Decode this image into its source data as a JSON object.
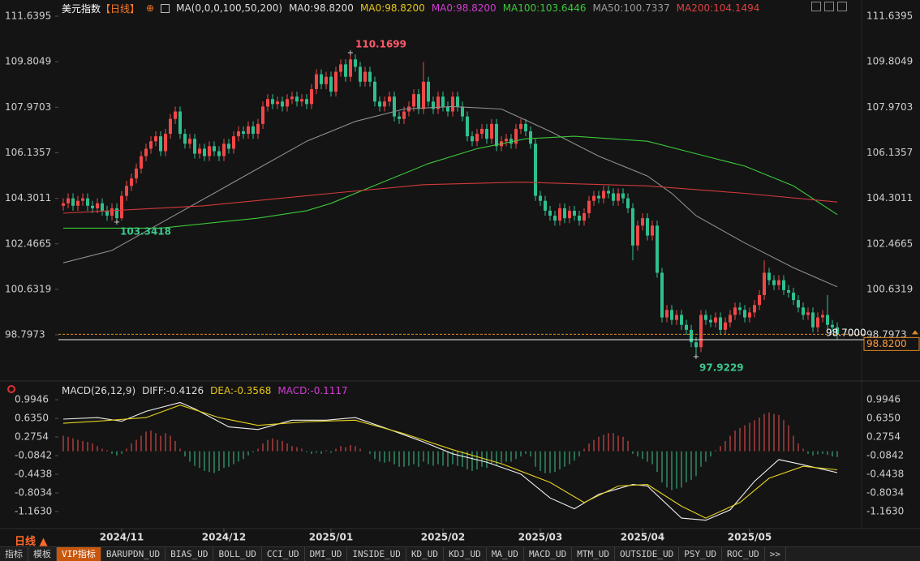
{
  "header": {
    "name": "美元指数",
    "period": "【日线】",
    "indicators": [
      {
        "text": "MA(0,0,0,100,50,200)",
        "color": "#dddddd"
      },
      {
        "text": "MA0:98.8200",
        "color": "#dddddd"
      },
      {
        "text": "MA0:98.8200",
        "color": "#e6c619"
      },
      {
        "text": "MA0:98.8200",
        "color": "#d23cd2"
      },
      {
        "text": "MA100:103.6446",
        "color": "#3cc83c"
      },
      {
        "text": "MA50:100.7337",
        "color": "#9a9a9a"
      },
      {
        "text": "MA200:104.1494",
        "color": "#e04040"
      }
    ]
  },
  "macd_header": [
    {
      "text": "MACD(26,12,9)",
      "color": "#dddddd"
    },
    {
      "text": "DIFF:-0.4126",
      "color": "#dddddd"
    },
    {
      "text": "DEA:-0.3568",
      "color": "#e6c619"
    },
    {
      "text": "MACD:-0.1117",
      "color": "#d23cd2"
    }
  ],
  "period_selector": "日线",
  "toolbar": [
    "指标",
    "模板",
    "VIP指标",
    "BARUPDN_UD",
    "BIAS_UD",
    "BOLL_UD",
    "CCI_UD",
    "DMI_UD",
    "INSIDE_UD",
    "KD_UD",
    "KDJ_UD",
    "MA_UD",
    "MACD_UD",
    "MTM_UD",
    "OUTSIDE_UD",
    "PSY_UD",
    "ROC_UD",
    ">>"
  ],
  "toolbar_active": 2,
  "chart_data": [
    {
      "type": "candlestick",
      "up_color": "#f04848",
      "down_color": "#2fbf8f",
      "xlim": [
        -1,
        165
      ],
      "ylim": [
        97.1,
        112.13
      ],
      "xticks": [
        {
          "value": 12,
          "label": "2024/11"
        },
        {
          "value": 33,
          "label": "2024/12"
        },
        {
          "value": 55,
          "label": "2025/01"
        },
        {
          "value": 78,
          "label": "2025/02"
        },
        {
          "value": 98,
          "label": "2025/03"
        },
        {
          "value": 119,
          "label": "2025/04"
        },
        {
          "value": 141,
          "label": "2025/05"
        }
      ],
      "yticks": [
        111.6395,
        109.8049,
        107.9703,
        106.1357,
        104.3011,
        102.4665,
        100.6319,
        98.7973
      ],
      "grid": false,
      "open": [
        104.0,
        104.1,
        104.3,
        104.0,
        104.2,
        104.3,
        104.0,
        103.9,
        104.1,
        103.8,
        103.6,
        103.9,
        103.5,
        104.4,
        104.8,
        105.1,
        105.5,
        106.0,
        106.3,
        106.6,
        106.8,
        106.2,
        106.9,
        107.5,
        107.8,
        106.9,
        106.5,
        106.7,
        106.1,
        106.3,
        106.0,
        106.4,
        106.2,
        106.0,
        106.5,
        106.3,
        106.8,
        107.0,
        106.9,
        107.2,
        106.9,
        107.3,
        108.0,
        108.3,
        108.1,
        108.2,
        108.0,
        108.3,
        108.4,
        108.2,
        108.3,
        108.1,
        108.7,
        109.3,
        108.9,
        109.2,
        108.6,
        109.4,
        109.7,
        109.2,
        109.9,
        109.6,
        109.0,
        109.4,
        109.0,
        108.2,
        108.0,
        108.2,
        108.4,
        107.6,
        107.5,
        107.8,
        108.0,
        108.5,
        107.9,
        109.0,
        108.2,
        107.9,
        108.4,
        108.0,
        107.8,
        108.4,
        108.0,
        107.6,
        106.8,
        106.6,
        106.9,
        107.1,
        106.7,
        107.3,
        106.4,
        106.6,
        106.7,
        106.5,
        107.1,
        107.3,
        107.0,
        106.5,
        104.4,
        104.2,
        103.8,
        103.6,
        103.4,
        103.9,
        103.5,
        103.8,
        103.6,
        103.4,
        103.7,
        104.2,
        104.4,
        104.3,
        104.6,
        104.5,
        104.2,
        104.5,
        104.3,
        103.9,
        102.4,
        103.2,
        103.5,
        102.8,
        103.2,
        101.3,
        99.5,
        99.8,
        99.4,
        99.6,
        99.2,
        99.0,
        98.5,
        98.3,
        99.6,
        99.4,
        99.3,
        99.5,
        99.0,
        99.3,
        99.6,
        99.9,
        99.8,
        99.5,
        99.7,
        100.0,
        100.4,
        101.3,
        101.0,
        100.8,
        101.0,
        100.6,
        100.5,
        100.2,
        99.9,
        99.6,
        99.7,
        99.1,
        99.5,
        99.6,
        99.2,
        99.1
      ],
      "high": [
        104.3,
        104.5,
        104.5,
        104.4,
        104.5,
        104.5,
        104.2,
        104.3,
        104.3,
        104.0,
        104.1,
        104.1,
        104.6,
        105.0,
        105.3,
        105.7,
        106.2,
        106.5,
        106.8,
        107.0,
        107.0,
        107.1,
        107.7,
        108.0,
        108.0,
        107.1,
        106.9,
        106.9,
        106.5,
        106.5,
        106.6,
        106.6,
        106.4,
        106.7,
        106.7,
        107.0,
        107.2,
        107.2,
        107.4,
        107.4,
        107.5,
        108.2,
        108.5,
        108.5,
        108.4,
        108.4,
        108.5,
        108.6,
        108.6,
        108.5,
        108.5,
        108.9,
        109.5,
        109.5,
        109.4,
        109.4,
        109.6,
        109.9,
        109.9,
        110.1699,
        110.1,
        109.8,
        109.6,
        109.6,
        109.2,
        108.4,
        108.4,
        108.6,
        108.6,
        107.8,
        108.0,
        108.2,
        108.7,
        108.7,
        109.8,
        109.2,
        108.4,
        108.6,
        108.6,
        108.2,
        108.6,
        108.6,
        108.2,
        107.8,
        107.0,
        107.1,
        107.3,
        107.3,
        107.5,
        107.5,
        106.8,
        106.9,
        106.9,
        107.3,
        107.5,
        107.5,
        107.2,
        106.7,
        104.6,
        104.4,
        104.0,
        103.8,
        104.1,
        104.1,
        104.0,
        104.0,
        103.8,
        103.9,
        104.4,
        104.6,
        104.6,
        104.8,
        104.8,
        104.7,
        104.7,
        104.7,
        104.5,
        104.1,
        103.4,
        103.7,
        103.7,
        103.4,
        103.4,
        101.5,
        100.0,
        100.0,
        99.8,
        99.8,
        99.4,
        99.2,
        98.7,
        99.8,
        99.8,
        99.6,
        99.7,
        99.7,
        99.5,
        99.8,
        100.1,
        100.1,
        100.0,
        99.9,
        100.2,
        100.6,
        101.8,
        101.5,
        101.2,
        101.2,
        101.2,
        100.8,
        100.7,
        100.4,
        100.1,
        99.9,
        99.9,
        99.7,
        99.8,
        100.4,
        99.4,
        99.3
      ],
      "low": [
        103.8,
        103.9,
        103.8,
        103.8,
        104.0,
        103.8,
        103.7,
        103.7,
        103.6,
        103.4,
        103.4,
        103.3418,
        103.4,
        104.2,
        104.6,
        104.9,
        105.3,
        105.8,
        106.1,
        106.4,
        106.0,
        106.0,
        106.7,
        107.3,
        106.7,
        106.3,
        106.3,
        105.9,
        105.9,
        105.8,
        105.8,
        106.0,
        105.8,
        105.8,
        106.1,
        106.1,
        106.6,
        106.7,
        106.7,
        106.7,
        106.7,
        107.1,
        107.8,
        107.9,
        107.9,
        107.8,
        107.8,
        108.1,
        108.0,
        108.0,
        107.9,
        107.9,
        108.5,
        108.7,
        108.7,
        108.4,
        108.4,
        109.2,
        109.0,
        109.0,
        109.4,
        108.8,
        108.8,
        108.8,
        108.0,
        107.8,
        107.8,
        108.0,
        107.4,
        107.3,
        107.3,
        107.6,
        107.8,
        107.7,
        107.7,
        108.0,
        107.7,
        107.7,
        107.8,
        107.6,
        107.6,
        107.8,
        107.4,
        106.6,
        106.4,
        106.4,
        106.7,
        106.5,
        106.5,
        106.2,
        106.2,
        106.4,
        106.3,
        106.3,
        106.9,
        106.8,
        106.3,
        104.2,
        104.0,
        103.6,
        103.4,
        103.2,
        103.2,
        103.3,
        103.3,
        103.4,
        103.2,
        103.2,
        103.5,
        104.0,
        104.1,
        104.1,
        104.3,
        104.0,
        104.0,
        104.1,
        103.7,
        101.8,
        102.2,
        103.0,
        102.6,
        102.6,
        101.1,
        99.3,
        99.3,
        99.2,
        99.2,
        99.0,
        98.8,
        98.3,
        97.9229,
        98.1,
        99.2,
        99.1,
        99.1,
        98.8,
        98.8,
        99.1,
        99.4,
        99.6,
        99.3,
        99.3,
        99.5,
        99.8,
        100.2,
        100.8,
        100.6,
        100.6,
        100.4,
        100.3,
        100.0,
        99.7,
        99.4,
        99.4,
        98.9,
        98.9,
        99.3,
        99.0,
        98.9,
        98.6
      ],
      "close": [
        104.1,
        104.3,
        104.0,
        104.2,
        104.3,
        104.0,
        103.9,
        104.1,
        103.8,
        103.6,
        103.9,
        103.5,
        104.4,
        104.8,
        105.1,
        105.5,
        106.0,
        106.3,
        106.6,
        106.8,
        106.2,
        106.9,
        107.5,
        107.8,
        106.9,
        106.5,
        106.7,
        106.1,
        106.3,
        106.0,
        106.4,
        106.2,
        106.0,
        106.5,
        106.3,
        106.8,
        107.0,
        106.9,
        107.2,
        106.9,
        107.3,
        108.0,
        108.3,
        108.1,
        108.2,
        108.0,
        108.3,
        108.4,
        108.2,
        108.3,
        108.1,
        108.7,
        109.3,
        108.9,
        109.2,
        108.6,
        109.4,
        109.7,
        109.2,
        109.9,
        109.6,
        109.0,
        109.4,
        109.0,
        108.2,
        108.0,
        108.2,
        108.4,
        107.6,
        107.5,
        107.8,
        108.0,
        108.5,
        107.9,
        109.0,
        108.2,
        107.9,
        108.4,
        108.0,
        107.8,
        108.4,
        108.0,
        107.6,
        106.8,
        106.6,
        106.9,
        107.1,
        106.7,
        107.3,
        106.4,
        106.6,
        106.7,
        106.5,
        107.1,
        107.3,
        107.0,
        106.5,
        104.4,
        104.2,
        103.8,
        103.6,
        103.4,
        103.9,
        103.5,
        103.8,
        103.6,
        103.4,
        103.7,
        104.2,
        104.4,
        104.3,
        104.6,
        104.5,
        104.2,
        104.5,
        104.3,
        103.9,
        102.4,
        103.2,
        103.5,
        102.8,
        103.2,
        101.3,
        99.5,
        99.8,
        99.4,
        99.6,
        99.2,
        99.0,
        98.5,
        98.3,
        99.6,
        99.4,
        99.3,
        99.5,
        99.0,
        99.3,
        99.6,
        99.9,
        99.8,
        99.5,
        99.7,
        100.0,
        100.4,
        101.3,
        101.0,
        100.8,
        101.0,
        100.6,
        100.5,
        100.2,
        99.9,
        99.6,
        99.7,
        99.1,
        99.5,
        99.6,
        99.2,
        99.1,
        98.82
      ],
      "series": [
        {
          "name": "MA50",
          "color": "#8e8e8e",
          "x": [
            0,
            10,
            20,
            30,
            40,
            50,
            60,
            70,
            80,
            90,
            100,
            110,
            120,
            125,
            130,
            140,
            150,
            159
          ],
          "values": [
            101.7,
            102.2,
            103.3,
            104.4,
            105.5,
            106.6,
            107.4,
            107.9,
            108.0,
            107.9,
            107.0,
            106.0,
            105.2,
            104.5,
            103.6,
            102.5,
            101.5,
            100.7337
          ]
        },
        {
          "name": "MA100",
          "color": "#3cc83c",
          "x": [
            0,
            20,
            30,
            40,
            50,
            55,
            65,
            75,
            85,
            95,
            105,
            120,
            130,
            140,
            150,
            159
          ],
          "values": [
            103.1,
            103.1,
            103.3,
            103.5,
            103.8,
            104.1,
            104.9,
            105.7,
            106.3,
            106.7,
            106.8,
            106.6,
            106.1,
            105.6,
            104.8,
            103.6446
          ]
        },
        {
          "name": "MA200",
          "color": "#d03a3a",
          "x": [
            0,
            29,
            55,
            74,
            94,
            120,
            140,
            159
          ],
          "values": [
            103.7,
            104.0,
            104.5,
            104.85,
            104.95,
            104.8,
            104.5,
            104.1494
          ]
        }
      ],
      "last_price": {
        "value": 98.82,
        "label": "98.8200"
      },
      "marker_price": {
        "value": 98.7,
        "label": "98.7000"
      }
    },
    {
      "type": "macd",
      "xlim": [
        -1,
        165
      ],
      "ylim": [
        -1.46,
        1.23
      ],
      "yticks": [
        0.9946,
        {
          "value": 0.635,
          "label": "0.6350"
        },
        0.2754,
        -0.0842,
        -0.4438,
        -0.8034,
        {
          "value": -1.163,
          "label": "-1.1630"
        }
      ],
      "up_color": "#d04848",
      "down_color": "#3aa877",
      "values": [
        0.3,
        0.28,
        0.25,
        0.22,
        0.2,
        0.18,
        0.15,
        0.1,
        0.05,
        0.02,
        -0.05,
        -0.08,
        -0.05,
        0.05,
        0.15,
        0.22,
        0.3,
        0.38,
        0.4,
        0.35,
        0.3,
        0.35,
        0.3,
        0.2,
        0.05,
        -0.1,
        -0.2,
        -0.28,
        -0.32,
        -0.38,
        -0.4,
        -0.42,
        -0.38,
        -0.32,
        -0.3,
        -0.25,
        -0.2,
        -0.15,
        -0.08,
        -0.02,
        0.05,
        0.15,
        0.22,
        0.25,
        0.22,
        0.2,
        0.15,
        0.1,
        0.08,
        0.05,
        -0.02,
        -0.05,
        -0.03,
        -0.05,
        0.02,
        -0.03,
        0.05,
        0.1,
        0.08,
        0.12,
        0.1,
        0.05,
        0.0,
        -0.05,
        -0.15,
        -0.2,
        -0.22,
        -0.2,
        -0.25,
        -0.3,
        -0.3,
        -0.28,
        -0.25,
        -0.3,
        -0.2,
        -0.25,
        -0.28,
        -0.25,
        -0.28,
        -0.3,
        -0.25,
        -0.28,
        -0.3,
        -0.35,
        -0.38,
        -0.35,
        -0.3,
        -0.32,
        -0.25,
        -0.28,
        -0.22,
        -0.2,
        -0.2,
        -0.15,
        -0.1,
        -0.05,
        -0.1,
        -0.3,
        -0.38,
        -0.42,
        -0.42,
        -0.4,
        -0.35,
        -0.3,
        -0.25,
        -0.18,
        -0.1,
        0.05,
        0.15,
        0.22,
        0.28,
        0.32,
        0.35,
        0.35,
        0.3,
        0.28,
        0.2,
        -0.05,
        -0.1,
        -0.15,
        -0.2,
        -0.25,
        -0.4,
        -0.6,
        -0.7,
        -0.75,
        -0.72,
        -0.7,
        -0.6,
        -0.55,
        -0.48,
        -0.3,
        -0.2,
        -0.1,
        0.02,
        0.1,
        0.2,
        0.3,
        0.4,
        0.45,
        0.5,
        0.55,
        0.6,
        0.65,
        0.72,
        0.75,
        0.72,
        0.7,
        0.6,
        0.5,
        0.3,
        0.15,
        0.05,
        -0.05,
        -0.08,
        -0.06,
        -0.05,
        -0.07,
        -0.1,
        -0.1117
      ],
      "series": [
        {
          "name": "DIFF",
          "color": "#f0f0f0",
          "x": [
            0,
            7,
            12,
            17,
            24,
            27,
            34,
            40,
            47,
            54,
            60,
            67,
            74,
            80,
            87,
            94,
            100,
            105,
            110,
            117,
            120,
            127,
            132,
            137,
            142,
            147,
            152,
            159
          ],
          "values": [
            0.62,
            0.65,
            0.58,
            0.77,
            0.94,
            0.82,
            0.47,
            0.42,
            0.6,
            0.6,
            0.65,
            0.42,
            0.18,
            -0.05,
            -0.21,
            -0.44,
            -0.9,
            -1.11,
            -0.83,
            -0.64,
            -0.67,
            -1.29,
            -1.33,
            -1.13,
            -0.58,
            -0.16,
            -0.26,
            -0.4126
          ]
        },
        {
          "name": "DEA",
          "color": "#e6d21e",
          "x": [
            0,
            7,
            17,
            24,
            32,
            40,
            50,
            60,
            70,
            80,
            90,
            100,
            107,
            114,
            120,
            127,
            132,
            139,
            145,
            152,
            159
          ],
          "values": [
            0.54,
            0.58,
            0.65,
            0.89,
            0.65,
            0.5,
            0.57,
            0.6,
            0.34,
            0.03,
            -0.24,
            -0.6,
            -0.99,
            -0.67,
            -0.64,
            -1.06,
            -1.29,
            -0.99,
            -0.52,
            -0.29,
            -0.3568
          ]
        }
      ]
    }
  ]
}
